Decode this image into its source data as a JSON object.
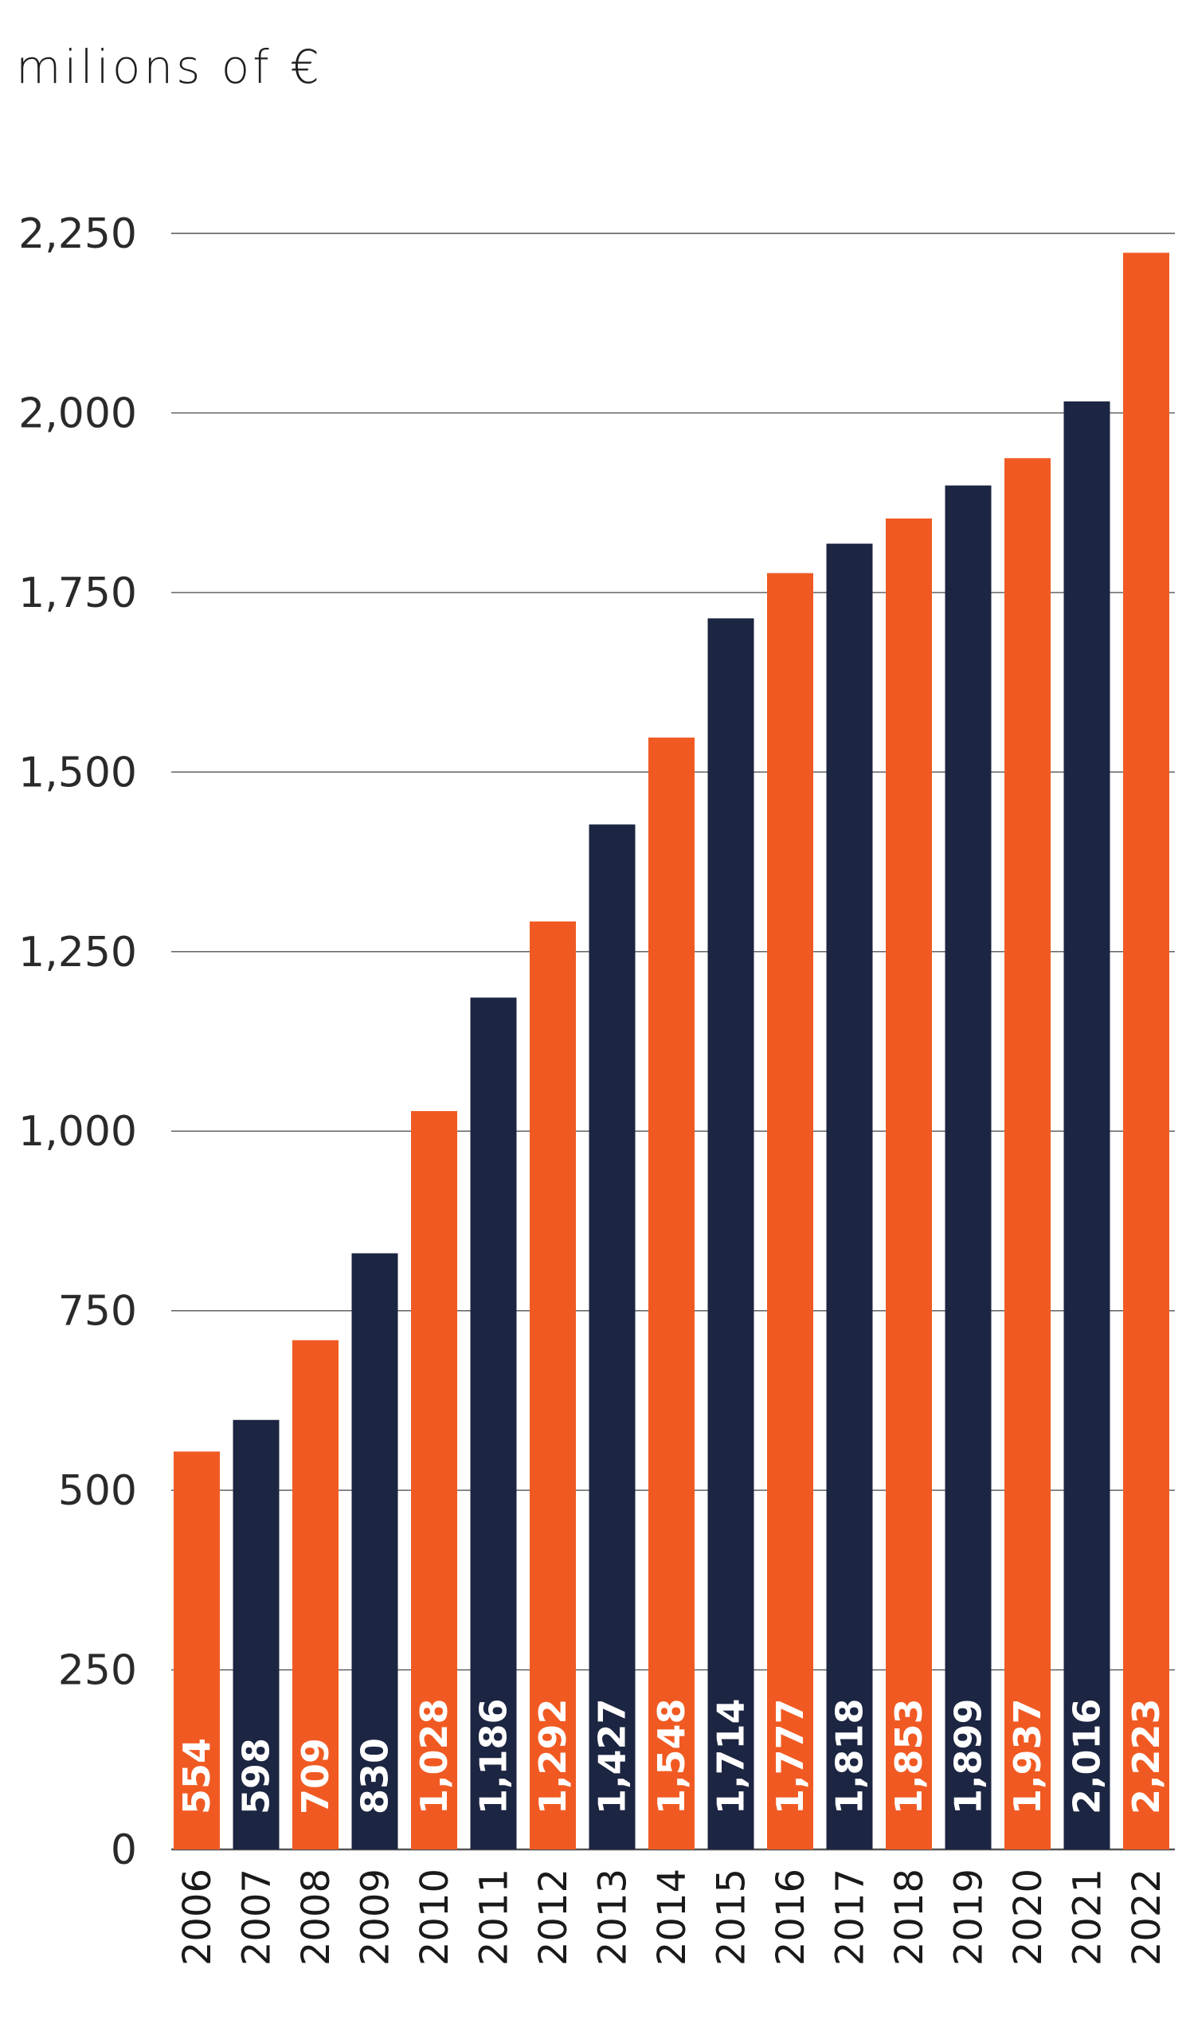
{
  "chart_data": {
    "type": "bar",
    "unit_label": "milions of €",
    "categories": [
      "2006",
      "2007",
      "2008",
      "2009",
      "2010",
      "2011",
      "2012",
      "2013",
      "2014",
      "2015",
      "2016",
      "2017",
      "2018",
      "2019",
      "2020",
      "2021",
      "2022"
    ],
    "values": [
      554,
      598,
      709,
      830,
      1028,
      1186,
      1292,
      1427,
      1548,
      1714,
      1777,
      1818,
      1853,
      1899,
      1937,
      2016,
      2223
    ],
    "value_labels": [
      "554",
      "598",
      "709",
      "830",
      "1,028",
      "1,186",
      "1,292",
      "1,427",
      "1,548",
      "1,714",
      "1,777",
      "1,818",
      "1,853",
      "1,899",
      "1,937",
      "2,016",
      "2,223"
    ],
    "yticks": [
      0,
      250,
      500,
      750,
      1000,
      1250,
      1500,
      1750,
      2000,
      2250
    ],
    "ytick_labels": [
      "0",
      "250",
      "500",
      "750",
      "1,000",
      "1,250",
      "1,500",
      "1,750",
      "2,000",
      "2,250"
    ],
    "ylim": [
      0,
      2250
    ],
    "grid": true,
    "colors": {
      "orange": "#f05a22",
      "navy": "#1c2541",
      "grid": "#555555"
    },
    "bar_colors": [
      "orange",
      "navy",
      "orange",
      "navy",
      "orange",
      "navy",
      "orange",
      "navy",
      "orange",
      "navy",
      "orange",
      "navy",
      "orange",
      "navy",
      "orange",
      "navy",
      "orange"
    ]
  }
}
